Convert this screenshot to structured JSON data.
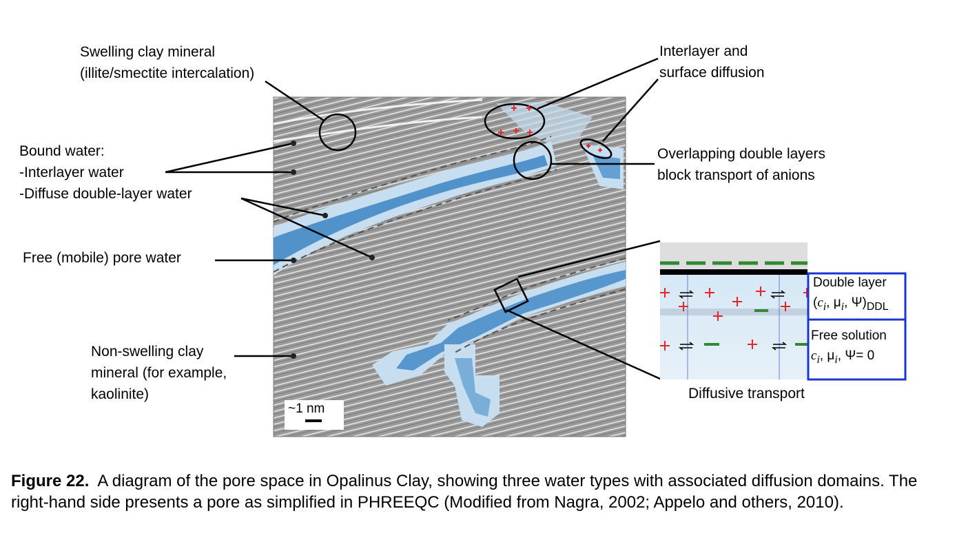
{
  "labels": {
    "swelling_1": "Swelling clay mineral",
    "swelling_2": "(illite/smectite intercalation)",
    "bound_1": "Bound water:",
    "bound_2": "-Interlayer water",
    "bound_3": "-Diffuse double-layer water",
    "free_pore": "Free (mobile) pore water",
    "nonswelling_1": "Non-swelling clay",
    "nonswelling_2": "mineral (for example,",
    "nonswelling_3": "kaolinite)",
    "interlayer_1": "Interlayer and",
    "interlayer_2": "surface diffusion",
    "overlap_1": "Overlapping double layers",
    "overlap_2": "block transport of anions",
    "diffusive": "Diffusive transport",
    "scale": "~1 nm"
  },
  "inset": {
    "double_layer_title": "Double layer",
    "double_layer_prefix": "(",
    "double_layer_vars": "c",
    "double_layer_sub_i": "i",
    "double_layer_mid": ", μ",
    "double_layer_psi": ", Ψ)",
    "double_layer_sub": "DDL",
    "free_title": "Free solution",
    "free_vars": "c",
    "free_sub_i": "i",
    "free_mid": ", μ",
    "free_psi": ", Ψ= 0"
  },
  "caption": {
    "label": "Figure 22.",
    "text": "A diagram of the pore space in Opalinus Clay, showing three water types with associated diffusion domains. The right-hand side presents a pore as simplified in PHREEQC (Modified from Nagra, 2002; Appelo and others, 2010)."
  },
  "colors": {
    "clay": "#8c8c8c",
    "water_light": "#c6def0",
    "water_deep": "#1d6fb8",
    "box_border": "#1a35d6",
    "plus": "#e8242a",
    "minus": "#2f8a2f"
  }
}
